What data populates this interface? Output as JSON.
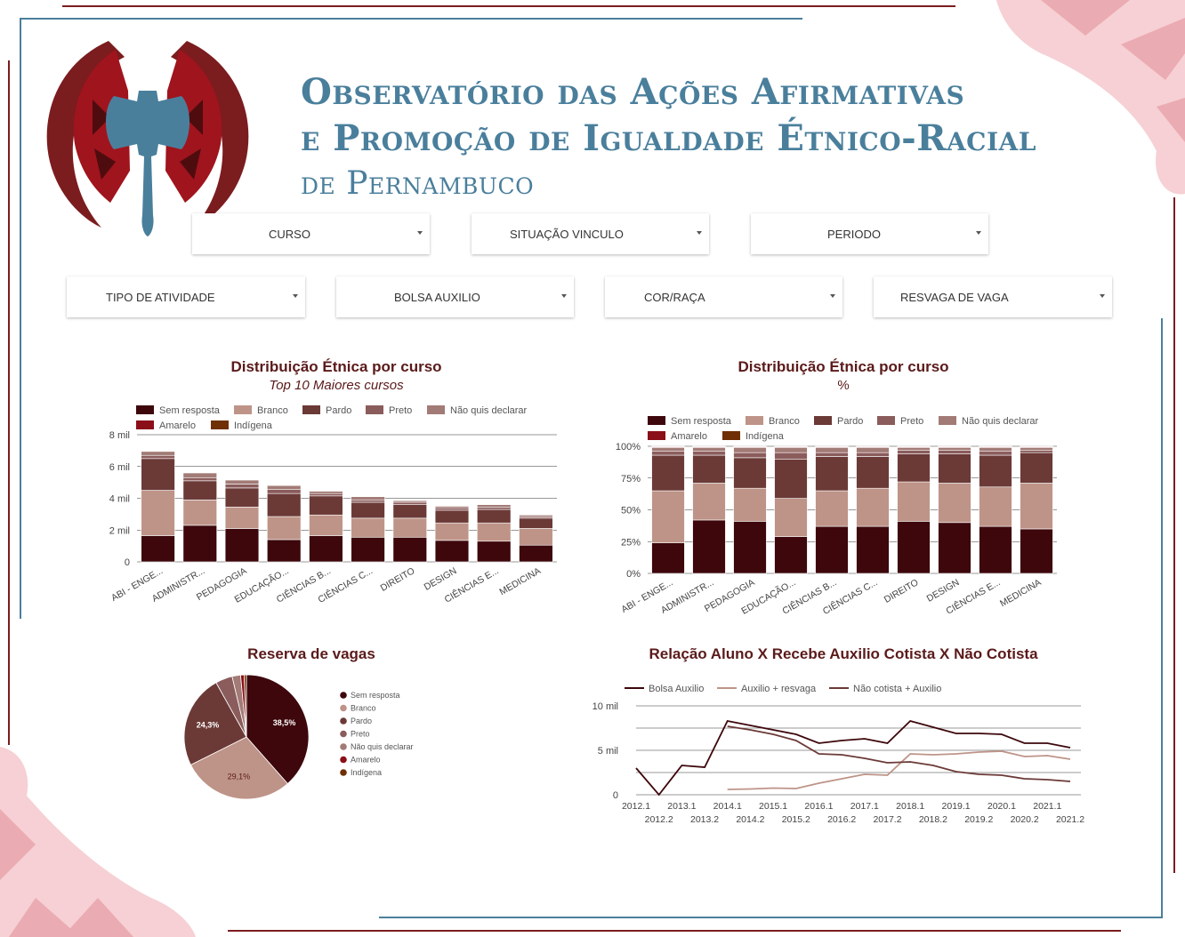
{
  "header": {
    "line1": "Observatório das Ações Afirmativas",
    "line2": "e Promoção de Igualdade Étnico-Racial",
    "line3": "de Pernambuco"
  },
  "filters": {
    "row1": [
      "CURSO",
      "SITUAÇÃO VINCULO",
      "PERIODO"
    ],
    "row2": [
      "TIPO DE ATIVIDADE",
      "BOLSA AUXILIO",
      "COR/RAÇA",
      "RESVAGA DE VAGA"
    ]
  },
  "colors": {
    "Sem resposta": "#3d070c",
    "Branco": "#be9488",
    "Pardo": "#6b3a37",
    "Preto": "#8b5c5c",
    "Não quis declarar": "#a27b76",
    "Amarelo": "#8b0f18",
    "Indígena": "#6e3004",
    "accent_blue": "#4a7f9c",
    "accent_red": "#7b1c1f"
  },
  "chart_data": [
    {
      "type": "bar",
      "stacked": true,
      "title": "Distribuição Étnica por curso",
      "subtitle": "Top 10 Maiores cursos",
      "categories": [
        "ABI - ENGE...",
        "ADMINISTR...",
        "PEDAGOGIA",
        "EDUCAÇÃO...",
        "CIÊNCIAS B...",
        "CIÊNCIAS C...",
        "DIREITO",
        "DESIGN",
        "CIÊNCIAS E...",
        "MEDICINA"
      ],
      "series": [
        {
          "name": "Sem resposta",
          "values": [
            1650,
            2300,
            2100,
            1400,
            1650,
            1550,
            1550,
            1350,
            1300,
            1050
          ]
        },
        {
          "name": "Branco",
          "values": [
            2850,
            1600,
            1350,
            1450,
            1300,
            1200,
            1200,
            1100,
            1150,
            1050
          ]
        },
        {
          "name": "Pardo",
          "values": [
            2000,
            1200,
            1200,
            1450,
            1200,
            1000,
            850,
            800,
            850,
            650
          ]
        },
        {
          "name": "Preto",
          "values": [
            200,
            200,
            250,
            250,
            150,
            150,
            150,
            150,
            150,
            100
          ]
        },
        {
          "name": "Não quis declarar",
          "values": [
            250,
            300,
            250,
            250,
            150,
            200,
            100,
            100,
            150,
            100
          ]
        },
        {
          "name": "Amarelo",
          "values": [
            30,
            30,
            30,
            30,
            30,
            20,
            20,
            20,
            20,
            20
          ]
        },
        {
          "name": "Indígena",
          "values": [
            20,
            20,
            20,
            20,
            20,
            20,
            10,
            10,
            10,
            10
          ]
        }
      ],
      "ylim": [
        0,
        8000
      ],
      "yticks": [
        "0",
        "2 mil",
        "4 mil",
        "6 mil",
        "8 mil"
      ],
      "legend": "top-left",
      "grid": true
    },
    {
      "type": "bar",
      "stacked": true,
      "title": "Distribuição Étnica por curso",
      "subtitle": "%",
      "categories": [
        "ABI - ENGE...",
        "ADMINISTR...",
        "PEDAGOGIA",
        "EDUCAÇÃO...",
        "CIÊNCIAS B...",
        "CIÊNCIAS C...",
        "DIREITO",
        "DESIGN",
        "CIÊNCIAS E...",
        "MEDICINA"
      ],
      "series": [
        {
          "name": "Sem resposta",
          "values": [
            24,
            42,
            41,
            29,
            37,
            37,
            41,
            40,
            37,
            35
          ]
        },
        {
          "name": "Branco",
          "values": [
            41,
            29,
            26,
            30,
            28,
            30,
            31,
            31,
            31,
            36
          ]
        },
        {
          "name": "Pardo",
          "values": [
            28,
            22,
            24,
            31,
            27,
            25,
            22,
            23,
            25,
            24
          ]
        },
        {
          "name": "Preto",
          "values": [
            3,
            3,
            4,
            5,
            3,
            3,
            3,
            3,
            3,
            2
          ]
        },
        {
          "name": "Não quis declarar",
          "values": [
            3,
            3,
            4,
            4,
            4,
            4,
            2,
            2,
            3,
            2
          ]
        },
        {
          "name": "Amarelo",
          "values": [
            0.6,
            0.6,
            0.6,
            0.6,
            0.6,
            0.6,
            0.6,
            0.6,
            0.6,
            0.6
          ]
        },
        {
          "name": "Indígena",
          "values": [
            0.4,
            0.4,
            0.4,
            0.4,
            0.4,
            0.4,
            0.4,
            0.4,
            0.4,
            0.4
          ]
        }
      ],
      "ylim": [
        0,
        100
      ],
      "yticks": [
        "0%",
        "25%",
        "50%",
        "75%",
        "100%"
      ],
      "legend": "top-left",
      "grid": true
    },
    {
      "type": "pie",
      "title": "Reserva de vagas",
      "slices": [
        {
          "name": "Sem resposta",
          "value": 38.5,
          "label": "38,5%"
        },
        {
          "name": "Branco",
          "value": 29.1,
          "label": "29,1%"
        },
        {
          "name": "Pardo",
          "value": 24.3,
          "label": "24,3%"
        },
        {
          "name": "Preto",
          "value": 4.4,
          "label": ""
        },
        {
          "name": "Não quis declarar",
          "value": 2.2,
          "label": ""
        },
        {
          "name": "Amarelo",
          "value": 0.9,
          "label": ""
        },
        {
          "name": "Indígena",
          "value": 0.6,
          "label": ""
        }
      ],
      "legend": "right"
    },
    {
      "type": "line",
      "title": "Relação Aluno X Recebe Auxilio Cotista X Não Cotista",
      "x": [
        "2012.1",
        "2012.2",
        "2013.1",
        "2013.2",
        "2014.1",
        "2014.2",
        "2015.1",
        "2015.2",
        "2016.1",
        "2016.2",
        "2017.1",
        "2017.2",
        "2018.1",
        "2018.2",
        "2019.1",
        "2019.2",
        "2020.1",
        "2020.2",
        "2021.1",
        "2021.2"
      ],
      "series": [
        {
          "name": "Bolsa Auxilio",
          "color": "#3d070c",
          "values": [
            3000,
            0,
            3300,
            3100,
            8300,
            7800,
            7300,
            6800,
            5800,
            6100,
            6300,
            5800,
            8300,
            7600,
            6900,
            6900,
            6800,
            5800,
            5800,
            5300
          ]
        },
        {
          "name": "Auxilio + resvaga",
          "color": "#be9488",
          "values": [
            null,
            null,
            null,
            null,
            600,
            650,
            750,
            700,
            1300,
            1800,
            2300,
            2200,
            4600,
            4500,
            4600,
            4800,
            4900,
            4300,
            4400,
            4000
          ]
        },
        {
          "name": "Não cotista + Auxilio",
          "color": "#6b3a37",
          "values": [
            null,
            null,
            null,
            null,
            7700,
            7300,
            6800,
            6100,
            4600,
            4500,
            4100,
            3600,
            3700,
            3300,
            2600,
            2300,
            2200,
            1800,
            1700,
            1500
          ]
        }
      ],
      "ylim": [
        0,
        10000
      ],
      "yticks": [
        "0",
        "5 mil",
        "10 mil"
      ],
      "legend": "top-left",
      "grid": true
    }
  ]
}
